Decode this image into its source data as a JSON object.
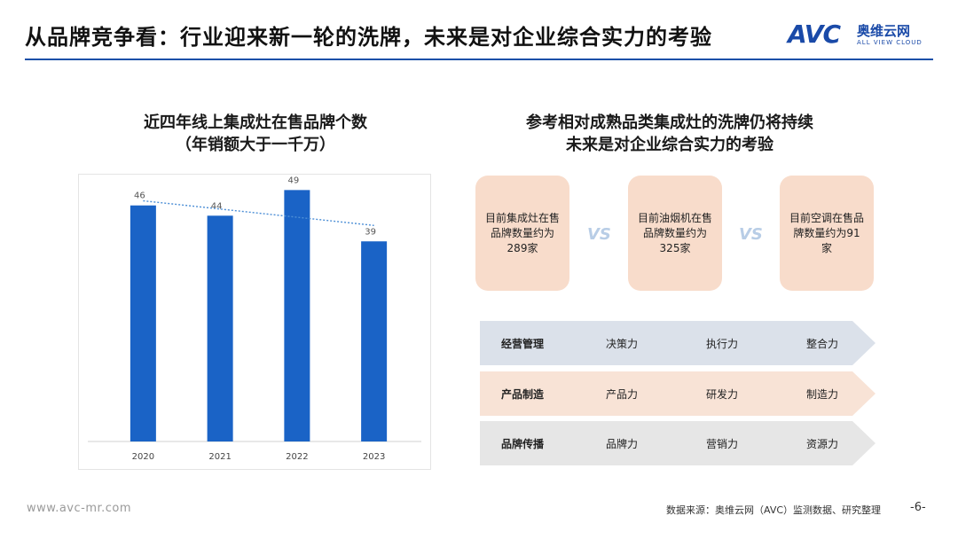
{
  "header": {
    "title": "从品牌竞争看：行业迎来新一轮的洗牌，未来是对企业综合实力的考验",
    "logo_mark": "AVC",
    "logo_cn": "奥维云网",
    "logo_en": "ALL VIEW CLOUD"
  },
  "left": {
    "title_line1": "近四年线上集成灶在售品牌个数",
    "title_line2": "（年销额大于一千万）"
  },
  "chart_data": {
    "type": "bar",
    "title": "近四年线上集成灶在售品牌个数（年销额大于一千万）",
    "categories": [
      "2020",
      "2021",
      "2022",
      "2023"
    ],
    "values": [
      46,
      44,
      49,
      39
    ],
    "trendline": "linear, dotted",
    "ylim": [
      0,
      52
    ],
    "grid": false,
    "bar_color": "#1a63c6",
    "trend_color": "#4d8fd6"
  },
  "right": {
    "title_line1": "参考相对成熟品类集成灶的洗牌仍将持续",
    "title_line2": "未来是对企业综合实力的考验",
    "cards": [
      {
        "text": "目前集成灶在售品牌数量约为289家"
      },
      {
        "text": "目前油烟机在售品牌数量约为325家"
      },
      {
        "text": "目前空调在售品牌数量约为91家"
      }
    ],
    "vs": [
      "VS",
      "VS"
    ],
    "bands": [
      {
        "head": "经营管理",
        "items": [
          "决策力",
          "执行力",
          "整合力"
        ],
        "color": "#dbe1ea"
      },
      {
        "head": "产品制造",
        "items": [
          "产品力",
          "研发力",
          "制造力"
        ],
        "color": "#f8e3d6"
      },
      {
        "head": "品牌传播",
        "items": [
          "品牌力",
          "营销力",
          "资源力"
        ],
        "color": "#e6e6e6"
      }
    ]
  },
  "footer": {
    "website": "www.avc-mr.com",
    "source": "数据来源：奥维云网（AVC）监测数据、研究整理",
    "page": "-6-"
  }
}
